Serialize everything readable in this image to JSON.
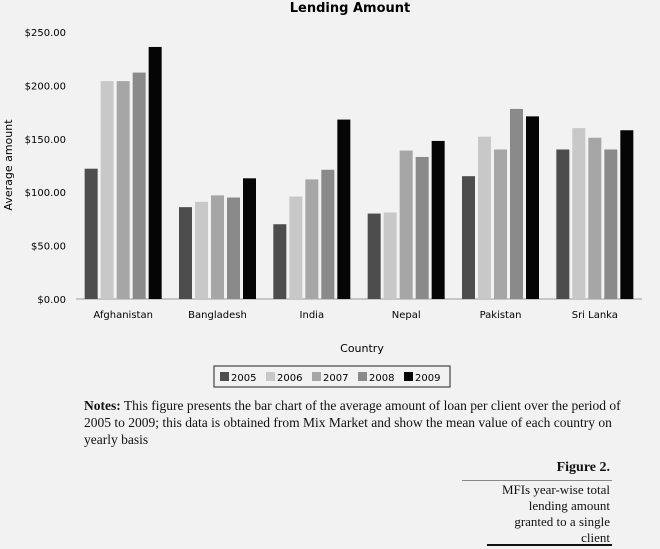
{
  "chart_data": {
    "type": "bar",
    "title": "Lending Amount",
    "xlabel": "Country",
    "ylabel": "Average amount",
    "categories": [
      "Afghanistan",
      "Bangladesh",
      "India",
      "Nepal",
      "Pakistan",
      "Sri Lanka"
    ],
    "ylim": [
      0,
      250
    ],
    "yticks": [
      "$0.00",
      "$50.00",
      "$100.00",
      "$150.00",
      "$200.00",
      "$250.00"
    ],
    "ytick_values": [
      0,
      50,
      100,
      150,
      200,
      250
    ],
    "grid": false,
    "legend_position": "bottom",
    "series": [
      {
        "name": "2005",
        "color": "#4d4d4d",
        "values": [
          122,
          86,
          70,
          80,
          115,
          140
        ]
      },
      {
        "name": "2006",
        "color": "#c8c8c8",
        "values": [
          204,
          91,
          96,
          81,
          152,
          160
        ]
      },
      {
        "name": "2007",
        "color": "#a6a6a6",
        "values": [
          204,
          97,
          112,
          139,
          140,
          151
        ]
      },
      {
        "name": "2008",
        "color": "#8a8a8a",
        "values": [
          212,
          95,
          121,
          133,
          178,
          140
        ]
      },
      {
        "name": "2009",
        "color": "#050505",
        "values": [
          236,
          113,
          168,
          148,
          171,
          158
        ]
      }
    ]
  },
  "notes": {
    "label": "Notes:",
    "text": " This figure presents the bar chart of the average amount of loan per client over the period of 2005 to 2009; this data is obtained from Mix Market and show the mean value of each country on yearly basis"
  },
  "figure": {
    "number": "Figure 2.",
    "caption": "MFIs year-wise total lending amount granted to a single client"
  }
}
